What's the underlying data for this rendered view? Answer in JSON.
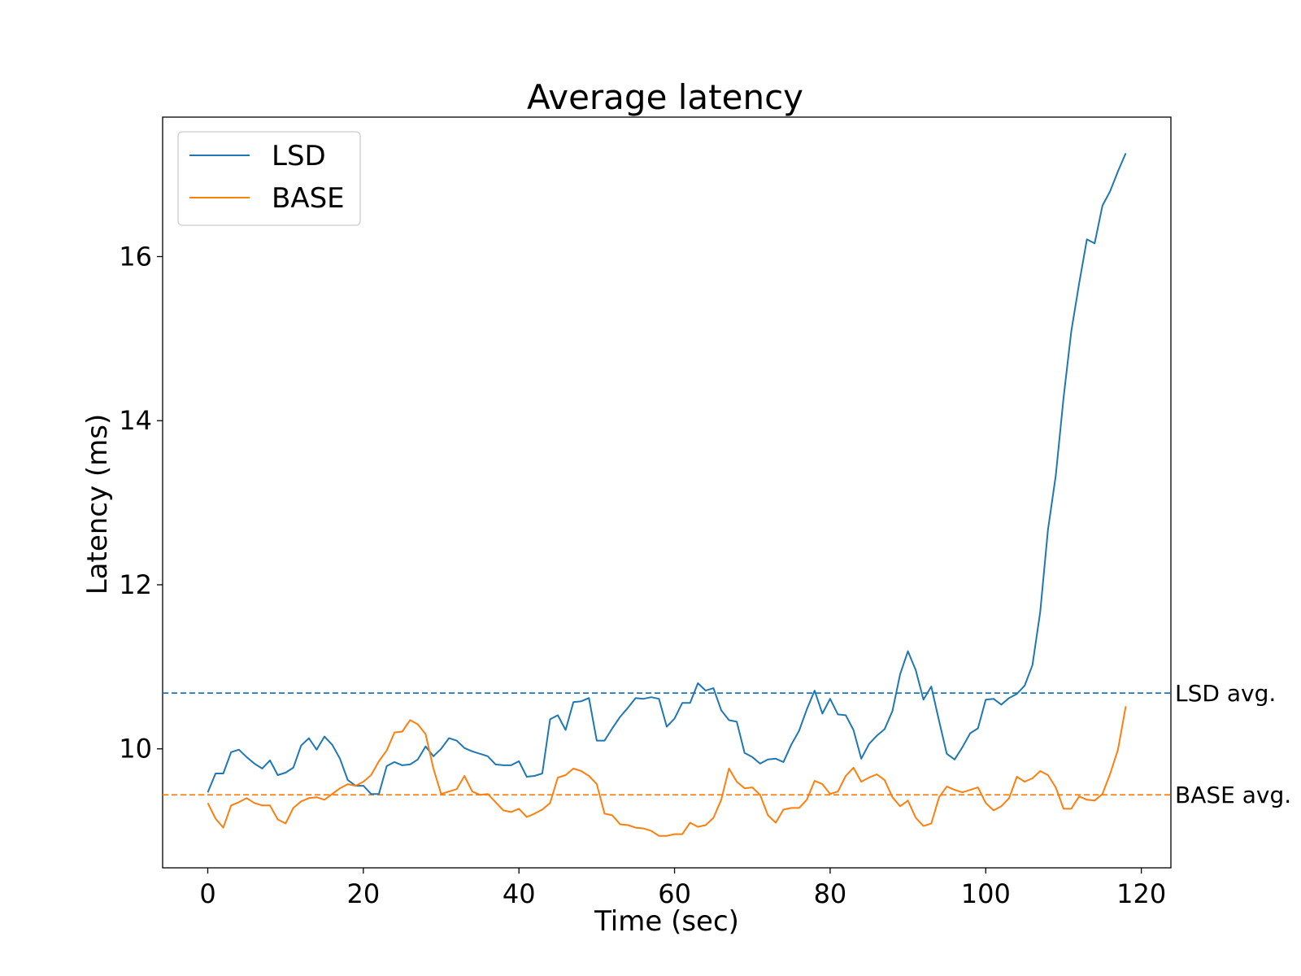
{
  "chart_data": {
    "type": "line",
    "title": "Average latency",
    "xlabel": "Time (sec)",
    "ylabel": "Latency (ms)",
    "xlim": [
      -5.8,
      123.8
    ],
    "ylim": [
      8.55,
      17.7
    ],
    "xticks": [
      0,
      20,
      40,
      60,
      80,
      100,
      120
    ],
    "yticks": [
      10,
      12,
      14,
      16
    ],
    "grid": false,
    "legend_position": "top-left",
    "x": [
      0,
      1,
      2,
      3,
      4,
      5,
      6,
      7,
      8,
      9,
      10,
      11,
      12,
      13,
      14,
      15,
      16,
      17,
      18,
      19,
      20,
      21,
      22,
      23,
      24,
      25,
      26,
      27,
      28,
      29,
      30,
      31,
      32,
      33,
      34,
      35,
      36,
      37,
      38,
      39,
      40,
      41,
      42,
      43,
      44,
      45,
      46,
      47,
      48,
      49,
      50,
      51,
      52,
      53,
      54,
      55,
      56,
      57,
      58,
      59,
      60,
      61,
      62,
      63,
      64,
      65,
      66,
      67,
      68,
      69,
      70,
      71,
      72,
      73,
      74,
      75,
      76,
      77,
      78,
      79,
      80,
      81,
      82,
      83,
      84,
      85,
      86,
      87,
      88,
      89,
      90,
      91,
      92,
      93,
      94,
      95,
      96,
      97,
      98,
      99,
      100,
      101,
      102,
      103,
      104,
      105,
      106,
      107,
      108,
      109,
      110,
      111,
      112,
      113,
      114,
      115,
      116,
      117,
      118
    ],
    "series": [
      {
        "name": "LSD",
        "color": "#1f77b4",
        "values": [
          9.47,
          9.7,
          9.7,
          9.96,
          9.99,
          9.9,
          9.82,
          9.76,
          9.86,
          9.68,
          9.71,
          9.77,
          10.04,
          10.13,
          9.99,
          10.15,
          10.05,
          9.88,
          9.62,
          9.55,
          9.55,
          9.45,
          9.45,
          9.79,
          9.84,
          9.8,
          9.81,
          9.87,
          10.03,
          9.91,
          10.0,
          10.13,
          10.1,
          10.01,
          9.97,
          9.94,
          9.91,
          9.81,
          9.8,
          9.8,
          9.85,
          9.66,
          9.67,
          9.7,
          10.36,
          10.41,
          10.23,
          10.57,
          10.58,
          10.62,
          10.1,
          10.1,
          10.25,
          10.39,
          10.5,
          10.62,
          10.61,
          10.63,
          10.61,
          10.27,
          10.37,
          10.56,
          10.56,
          10.8,
          10.71,
          10.74,
          10.47,
          10.35,
          10.33,
          9.95,
          9.9,
          9.82,
          9.87,
          9.88,
          9.84,
          10.05,
          10.22,
          10.48,
          10.71,
          10.43,
          10.61,
          10.42,
          10.41,
          10.23,
          9.88,
          10.06,
          10.16,
          10.24,
          10.46,
          10.91,
          11.19,
          10.96,
          10.6,
          10.76,
          10.34,
          9.94,
          9.87,
          10.02,
          10.19,
          10.25,
          10.6,
          10.61,
          10.54,
          10.62,
          10.67,
          10.77,
          11.02,
          11.67,
          12.67,
          13.33,
          14.28,
          15.09,
          15.67,
          16.21,
          16.16,
          16.62,
          16.8,
          17.04,
          17.26
        ]
      },
      {
        "name": "BASE",
        "color": "#ff7f0e",
        "values": [
          9.34,
          9.15,
          9.04,
          9.31,
          9.35,
          9.4,
          9.34,
          9.31,
          9.31,
          9.14,
          9.09,
          9.28,
          9.36,
          9.4,
          9.41,
          9.38,
          9.45,
          9.52,
          9.57,
          9.55,
          9.6,
          9.68,
          9.85,
          9.98,
          10.2,
          10.21,
          10.35,
          10.3,
          10.18,
          9.76,
          9.45,
          9.48,
          9.51,
          9.67,
          9.48,
          9.44,
          9.45,
          9.35,
          9.25,
          9.23,
          9.27,
          9.17,
          9.21,
          9.26,
          9.34,
          9.65,
          9.68,
          9.76,
          9.73,
          9.67,
          9.57,
          9.21,
          9.19,
          9.08,
          9.07,
          9.04,
          9.03,
          9.0,
          8.94,
          8.94,
          8.96,
          8.96,
          9.1,
          9.05,
          9.07,
          9.16,
          9.38,
          9.76,
          9.6,
          9.52,
          9.53,
          9.44,
          9.19,
          9.1,
          9.26,
          9.28,
          9.28,
          9.38,
          9.61,
          9.57,
          9.45,
          9.48,
          9.67,
          9.77,
          9.6,
          9.65,
          9.69,
          9.62,
          9.41,
          9.3,
          9.37,
          9.16,
          9.06,
          9.09,
          9.41,
          9.54,
          9.5,
          9.47,
          9.5,
          9.53,
          9.34,
          9.25,
          9.3,
          9.4,
          9.66,
          9.6,
          9.64,
          9.73,
          9.68,
          9.53,
          9.27,
          9.27,
          9.42,
          9.38,
          9.37,
          9.45,
          9.7,
          9.99,
          10.52
        ]
      }
    ],
    "reference_lines": [
      {
        "name": "LSD avg.",
        "value": 10.68,
        "color": "#1f77b4",
        "style": "dashed"
      },
      {
        "name": "BASE avg.",
        "value": 9.44,
        "color": "#ff7f0e",
        "style": "dashed"
      }
    ]
  }
}
